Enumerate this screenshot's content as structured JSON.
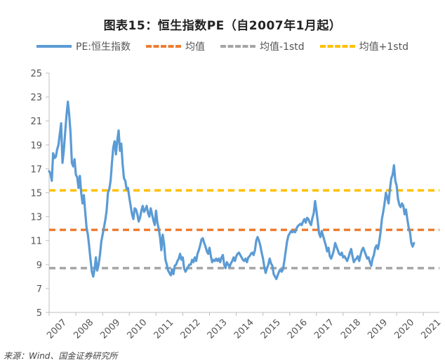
{
  "chart_data": {
    "type": "line",
    "title": "图表15：恒生指数PE（自2007年1月起）",
    "ylim": [
      5,
      25
    ],
    "yticks": [
      "5",
      "7",
      "9",
      "11",
      "13",
      "15",
      "17",
      "19",
      "21",
      "23",
      "25"
    ],
    "xticks": [
      "2007",
      "2008",
      "2009",
      "2010",
      "2011",
      "2012",
      "2013",
      "2014",
      "2015",
      "2016",
      "2017",
      "2018",
      "2019",
      "2020",
      "2021"
    ],
    "x_range": [
      2007.0,
      2021.6
    ],
    "legend_position": "top",
    "grid": false,
    "series": [
      {
        "name": "PE:恒生指数",
        "color": "#5b9bd5",
        "style": "solid",
        "points": [
          [
            2007.0,
            16.8
          ],
          [
            2007.05,
            16.6
          ],
          [
            2007.1,
            16.0
          ],
          [
            2007.15,
            18.3
          ],
          [
            2007.2,
            17.9
          ],
          [
            2007.25,
            18.0
          ],
          [
            2007.3,
            18.6
          ],
          [
            2007.35,
            19.0
          ],
          [
            2007.4,
            19.9
          ],
          [
            2007.45,
            20.8
          ],
          [
            2007.5,
            17.5
          ],
          [
            2007.55,
            18.5
          ],
          [
            2007.6,
            20.0
          ],
          [
            2007.65,
            21.5
          ],
          [
            2007.7,
            22.6
          ],
          [
            2007.75,
            21.5
          ],
          [
            2007.8,
            20.0
          ],
          [
            2007.85,
            17.5
          ],
          [
            2007.9,
            17.2
          ],
          [
            2007.95,
            17.8
          ],
          [
            2008.0,
            16.5
          ],
          [
            2008.05,
            16.3
          ],
          [
            2008.1,
            15.4
          ],
          [
            2008.15,
            16.4
          ],
          [
            2008.2,
            15.0
          ],
          [
            2008.25,
            14.1
          ],
          [
            2008.3,
            14.8
          ],
          [
            2008.35,
            13.4
          ],
          [
            2008.4,
            12.1
          ],
          [
            2008.45,
            11.5
          ],
          [
            2008.5,
            10.5
          ],
          [
            2008.55,
            9.4
          ],
          [
            2008.6,
            8.4
          ],
          [
            2008.65,
            8.0
          ],
          [
            2008.7,
            8.6
          ],
          [
            2008.75,
            9.6
          ],
          [
            2008.8,
            8.5
          ],
          [
            2008.85,
            9.0
          ],
          [
            2008.9,
            9.8
          ],
          [
            2008.95,
            10.9
          ],
          [
            2009.0,
            11.5
          ],
          [
            2009.05,
            12.1
          ],
          [
            2009.1,
            12.7
          ],
          [
            2009.15,
            13.5
          ],
          [
            2009.2,
            15.0
          ],
          [
            2009.25,
            15.3
          ],
          [
            2009.3,
            16.0
          ],
          [
            2009.35,
            17.5
          ],
          [
            2009.4,
            18.8
          ],
          [
            2009.45,
            19.3
          ],
          [
            2009.5,
            18.2
          ],
          [
            2009.55,
            19.4
          ],
          [
            2009.6,
            20.2
          ],
          [
            2009.65,
            18.5
          ],
          [
            2009.7,
            19.1
          ],
          [
            2009.75,
            17.4
          ],
          [
            2009.8,
            16.2
          ],
          [
            2009.85,
            16.0
          ],
          [
            2009.9,
            15.3
          ],
          [
            2009.95,
            15.4
          ],
          [
            2010.0,
            14.6
          ],
          [
            2010.1,
            13.2
          ],
          [
            2010.15,
            12.8
          ],
          [
            2010.2,
            13.7
          ],
          [
            2010.25,
            13.6
          ],
          [
            2010.3,
            13.2
          ],
          [
            2010.35,
            12.6
          ],
          [
            2010.4,
            12.9
          ],
          [
            2010.45,
            13.5
          ],
          [
            2010.5,
            13.9
          ],
          [
            2010.55,
            13.4
          ],
          [
            2010.6,
            13.6
          ],
          [
            2010.65,
            13.9
          ],
          [
            2010.7,
            13.3
          ],
          [
            2010.75,
            13.0
          ],
          [
            2010.8,
            13.7
          ],
          [
            2010.85,
            13.2
          ],
          [
            2010.9,
            12.7
          ],
          [
            2010.95,
            12.3
          ],
          [
            2011.0,
            13.5
          ],
          [
            2011.05,
            12.5
          ],
          [
            2011.1,
            12.0
          ],
          [
            2011.15,
            11.3
          ],
          [
            2011.2,
            10.2
          ],
          [
            2011.25,
            11.5
          ],
          [
            2011.3,
            10.7
          ],
          [
            2011.35,
            9.4
          ],
          [
            2011.4,
            9.0
          ],
          [
            2011.45,
            8.5
          ],
          [
            2011.5,
            8.3
          ],
          [
            2011.55,
            8.1
          ],
          [
            2011.6,
            8.6
          ],
          [
            2011.65,
            8.2
          ],
          [
            2011.7,
            8.9
          ],
          [
            2011.75,
            9.0
          ],
          [
            2011.8,
            9.3
          ],
          [
            2011.85,
            9.5
          ],
          [
            2011.9,
            9.9
          ],
          [
            2011.95,
            9.4
          ],
          [
            2012.0,
            9.6
          ],
          [
            2012.05,
            8.7
          ],
          [
            2012.1,
            8.4
          ],
          [
            2012.15,
            8.6
          ],
          [
            2012.2,
            8.8
          ],
          [
            2012.25,
            9.0
          ],
          [
            2012.3,
            9.0
          ],
          [
            2012.35,
            9.4
          ],
          [
            2012.4,
            9.2
          ],
          [
            2012.45,
            9.6
          ],
          [
            2012.5,
            9.3
          ],
          [
            2012.55,
            9.9
          ],
          [
            2012.6,
            10.2
          ],
          [
            2012.65,
            10.6
          ],
          [
            2012.7,
            11.1
          ],
          [
            2012.75,
            11.2
          ],
          [
            2012.8,
            10.8
          ],
          [
            2012.85,
            10.5
          ],
          [
            2012.9,
            10.1
          ],
          [
            2012.95,
            9.9
          ],
          [
            2013.0,
            10.4
          ],
          [
            2013.05,
            9.7
          ],
          [
            2013.1,
            9.2
          ],
          [
            2013.15,
            9.4
          ],
          [
            2013.2,
            9.3
          ],
          [
            2013.25,
            9.5
          ],
          [
            2013.3,
            9.3
          ],
          [
            2013.35,
            9.5
          ],
          [
            2013.4,
            9.2
          ],
          [
            2013.45,
            9.6
          ],
          [
            2013.5,
            9.8
          ],
          [
            2013.55,
            9.0
          ],
          [
            2013.6,
            8.7
          ],
          [
            2013.65,
            9.2
          ],
          [
            2013.7,
            9.0
          ],
          [
            2013.75,
            8.8
          ],
          [
            2013.8,
            9.1
          ],
          [
            2013.85,
            9.3
          ],
          [
            2013.9,
            9.6
          ],
          [
            2013.95,
            9.3
          ],
          [
            2014.0,
            9.7
          ],
          [
            2014.05,
            9.9
          ],
          [
            2014.1,
            10.0
          ],
          [
            2014.15,
            9.8
          ],
          [
            2014.2,
            9.6
          ],
          [
            2014.25,
            9.4
          ],
          [
            2014.3,
            9.3
          ],
          [
            2014.35,
            9.5
          ],
          [
            2014.4,
            9.2
          ],
          [
            2014.45,
            9.6
          ],
          [
            2014.5,
            9.7
          ],
          [
            2014.55,
            9.9
          ],
          [
            2014.6,
            10.0
          ],
          [
            2014.65,
            9.8
          ],
          [
            2014.7,
            10.2
          ],
          [
            2014.75,
            11.0
          ],
          [
            2014.8,
            11.3
          ],
          [
            2014.85,
            11.0
          ],
          [
            2014.9,
            10.6
          ],
          [
            2014.95,
            10.0
          ],
          [
            2015.0,
            9.5
          ],
          [
            2015.05,
            8.8
          ],
          [
            2015.1,
            8.3
          ],
          [
            2015.15,
            8.7
          ],
          [
            2015.2,
            9.0
          ],
          [
            2015.25,
            9.5
          ],
          [
            2015.3,
            9.1
          ],
          [
            2015.35,
            8.9
          ],
          [
            2015.4,
            8.2
          ],
          [
            2015.45,
            8.0
          ],
          [
            2015.5,
            7.8
          ],
          [
            2015.55,
            8.1
          ],
          [
            2015.6,
            8.4
          ],
          [
            2015.65,
            8.6
          ],
          [
            2015.7,
            8.4
          ],
          [
            2015.75,
            8.6
          ],
          [
            2015.8,
            9.3
          ],
          [
            2015.85,
            10.1
          ],
          [
            2015.9,
            10.9
          ],
          [
            2015.95,
            11.4
          ],
          [
            2016.0,
            11.6
          ],
          [
            2016.05,
            11.8
          ],
          [
            2016.1,
            11.7
          ],
          [
            2016.15,
            11.8
          ],
          [
            2016.2,
            11.7
          ],
          [
            2016.25,
            12.0
          ],
          [
            2016.3,
            12.2
          ],
          [
            2016.35,
            12.3
          ],
          [
            2016.4,
            12.4
          ],
          [
            2016.45,
            12.3
          ],
          [
            2016.5,
            12.6
          ],
          [
            2016.55,
            12.8
          ],
          [
            2016.6,
            12.5
          ],
          [
            2016.65,
            12.9
          ],
          [
            2016.7,
            12.8
          ],
          [
            2016.75,
            12.5
          ],
          [
            2016.8,
            12.3
          ],
          [
            2016.85,
            12.9
          ],
          [
            2016.9,
            13.3
          ],
          [
            2016.95,
            14.3
          ],
          [
            2017.0,
            13.5
          ],
          [
            2017.05,
            12.6
          ],
          [
            2017.1,
            11.6
          ],
          [
            2017.15,
            11.3
          ],
          [
            2017.2,
            11.8
          ],
          [
            2017.25,
            11.4
          ],
          [
            2017.3,
            11.0
          ],
          [
            2017.35,
            10.6
          ],
          [
            2017.4,
            10.1
          ],
          [
            2017.45,
            10.4
          ],
          [
            2017.5,
            9.7
          ],
          [
            2017.55,
            9.5
          ],
          [
            2017.6,
            9.8
          ],
          [
            2017.65,
            10.2
          ],
          [
            2017.7,
            10.8
          ],
          [
            2017.75,
            10.5
          ],
          [
            2017.8,
            10.2
          ],
          [
            2017.85,
            9.9
          ],
          [
            2017.9,
            9.8
          ],
          [
            2017.95,
            10.0
          ],
          [
            2018.0,
            9.6
          ],
          [
            2018.05,
            9.7
          ],
          [
            2018.1,
            9.5
          ],
          [
            2018.15,
            9.3
          ],
          [
            2018.2,
            9.6
          ],
          [
            2018.25,
            10.0
          ],
          [
            2018.3,
            10.3
          ],
          [
            2018.35,
            9.7
          ],
          [
            2018.4,
            9.2
          ],
          [
            2018.45,
            9.4
          ],
          [
            2018.5,
            9.5
          ],
          [
            2018.55,
            9.7
          ],
          [
            2018.6,
            9.3
          ],
          [
            2018.65,
            9.8
          ],
          [
            2018.7,
            10.2
          ],
          [
            2018.75,
            10.4
          ],
          [
            2018.8,
            10.1
          ],
          [
            2018.85,
            9.8
          ],
          [
            2018.9,
            9.5
          ],
          [
            2018.95,
            9.6
          ],
          [
            2019.0,
            9.2
          ],
          [
            2019.05,
            8.9
          ],
          [
            2019.1,
            9.5
          ],
          [
            2019.15,
            9.8
          ],
          [
            2019.2,
            10.4
          ],
          [
            2019.25,
            10.6
          ],
          [
            2019.3,
            10.3
          ],
          [
            2019.35,
            10.9
          ],
          [
            2019.4,
            11.7
          ],
          [
            2019.45,
            12.8
          ],
          [
            2019.5,
            13.4
          ],
          [
            2019.55,
            14.1
          ],
          [
            2019.6,
            15.0
          ],
          [
            2019.65,
            14.6
          ],
          [
            2019.7,
            14.1
          ],
          [
            2019.75,
            15.3
          ],
          [
            2019.8,
            16.2
          ],
          [
            2019.85,
            16.5
          ],
          [
            2019.9,
            17.3
          ],
          [
            2019.95,
            16.0
          ],
          [
            2020.0,
            15.6
          ],
          [
            2020.05,
            14.5
          ],
          [
            2020.1,
            14.0
          ],
          [
            2020.15,
            13.8
          ],
          [
            2020.2,
            14.1
          ],
          [
            2020.25,
            13.9
          ],
          [
            2020.3,
            13.2
          ],
          [
            2020.35,
            13.6
          ],
          [
            2020.4,
            12.8
          ],
          [
            2020.45,
            12.1
          ],
          [
            2020.5,
            11.7
          ],
          [
            2020.55,
            10.8
          ],
          [
            2020.6,
            10.5
          ],
          [
            2020.65,
            10.8
          ]
        ]
      },
      {
        "name": "均值",
        "color": "#ed7d31",
        "style": "dashed",
        "value": 11.9
      },
      {
        "name": "均值-1std",
        "color": "#a5a5a5",
        "style": "dashed",
        "value": 8.7
      },
      {
        "name": "均值+1std",
        "color": "#ffc000",
        "style": "dashed",
        "value": 15.2
      }
    ]
  },
  "source": "来源：Wind、国金证券研究所"
}
